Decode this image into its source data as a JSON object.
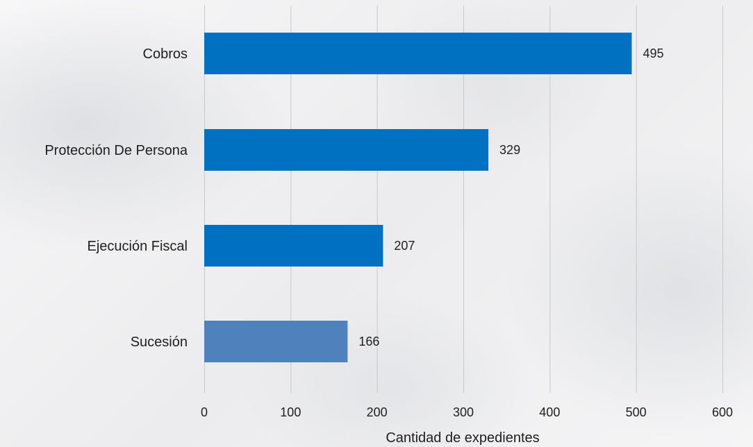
{
  "chart_data": {
    "type": "bar",
    "orientation": "horizontal",
    "categories": [
      "Cobros",
      "Protección De Persona",
      "Ejecución Fiscal",
      "Sucesión"
    ],
    "values": [
      495,
      329,
      207,
      166
    ],
    "data_labels": [
      "495",
      "329",
      "207",
      "166"
    ],
    "bar_colors": [
      "#0070c0",
      "#0070c0",
      "#0070c0",
      "#4f81bd"
    ],
    "xlabel": "Cantidad de expedientes",
    "ylabel": "",
    "title": "",
    "xlim": [
      0,
      600
    ],
    "x_ticks": [
      0,
      100,
      200,
      300,
      400,
      500,
      600
    ],
    "x_tick_labels": [
      "0",
      "100",
      "200",
      "300",
      "400",
      "500",
      "600"
    ],
    "grid": "vertical",
    "legend": "none"
  }
}
